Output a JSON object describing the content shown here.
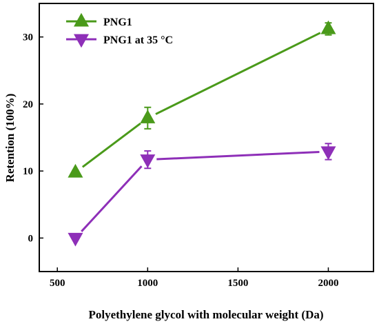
{
  "chart_data": {
    "type": "line",
    "xlabel": "Polyethylene glycol with molecular weight (Da)",
    "ylabel": "Retention (100%)",
    "xlim": [
      400,
      2250
    ],
    "ylim": [
      -5,
      35
    ],
    "xticks": [
      500,
      1000,
      1500,
      2000
    ],
    "yticks": [
      0,
      10,
      20,
      30
    ],
    "legend_position": "top-left",
    "grid": false,
    "series": [
      {
        "name": "PNG1",
        "marker": "triangle-up",
        "color": "#4a9a1a",
        "x": [
          600,
          1000,
          2000
        ],
        "y": [
          9.8,
          17.9,
          31.2
        ],
        "error": [
          0.3,
          1.6,
          0.9
        ]
      },
      {
        "name": "PNG1 at 35 °C",
        "marker": "triangle-down",
        "color": "#8e2fb8",
        "x": [
          600,
          1000,
          2000
        ],
        "y": [
          0,
          11.7,
          12.9
        ],
        "error": [
          0,
          1.3,
          1.2
        ]
      }
    ]
  }
}
